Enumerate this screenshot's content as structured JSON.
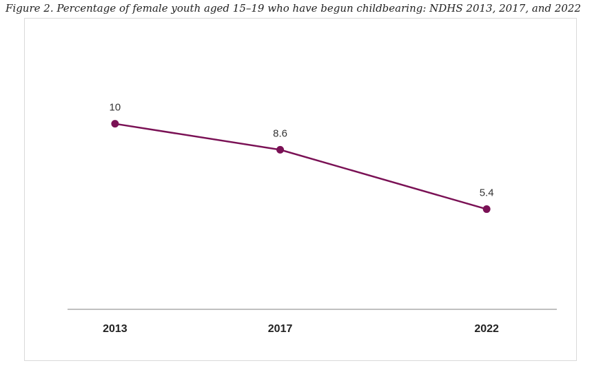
{
  "caption": "Figure 2. Percentage of female youth aged 15–19 who have begun childbearing: NDHS 2013, 2017, and 2022",
  "colors": {
    "line": "#7a1155",
    "axis": "#bfbfbf",
    "frame": "#d9d9d9"
  },
  "chart_data": {
    "type": "line",
    "title": "",
    "xlabel": "",
    "ylabel": "",
    "categories": [
      "2013",
      "2017",
      "2022"
    ],
    "x": [
      2013,
      2017,
      2022
    ],
    "series": [
      {
        "values": [
          10,
          8.6,
          5.4
        ],
        "data_labels": [
          "10",
          "8.6",
          "5.4"
        ]
      }
    ],
    "ylim": [
      0,
      15
    ],
    "grid": false,
    "legend": "none"
  }
}
